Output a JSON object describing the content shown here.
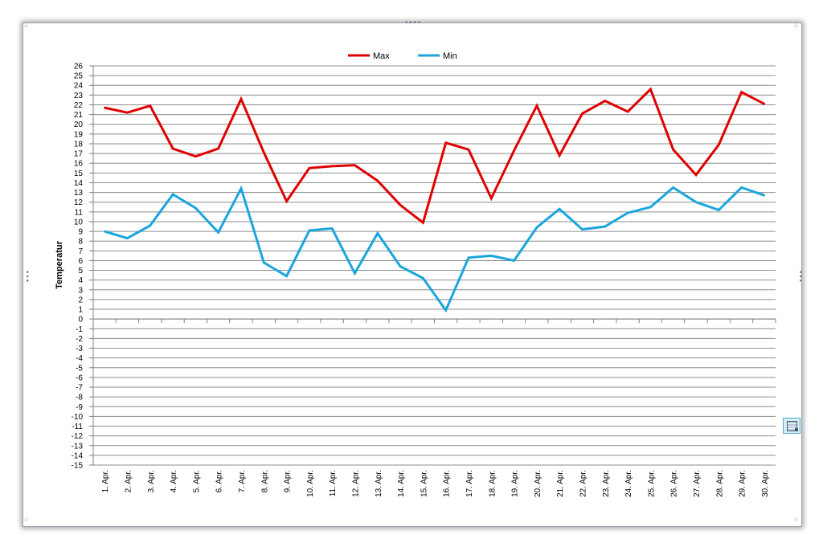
{
  "colors": {
    "max": "#e00000",
    "min": "#1aa6dd",
    "grid": "#8c8c8c",
    "frame_border": "#9aa3ad"
  },
  "icons": [
    "resize-handle-icon",
    "paste-options-icon"
  ],
  "chart_data": {
    "type": "line",
    "title": "",
    "xlabel": "",
    "ylabel": "Temperatur",
    "ylim": [
      -15,
      26
    ],
    "ytick_step": 1,
    "grid": "horizontal",
    "legend_position": "top-center",
    "categories": [
      "1. Apr.",
      "2. Apr.",
      "3. Apr.",
      "4. Apr.",
      "5. Apr.",
      "6. Apr.",
      "7. Apr.",
      "8. Apr.",
      "9. Apr.",
      "10. Apr.",
      "11. Apr.",
      "12. Apr.",
      "13. Apr.",
      "14. Apr.",
      "15. Apr.",
      "16. Apr.",
      "17. Apr.",
      "18. Apr.",
      "19. Apr.",
      "20. Apr.",
      "21. Apr.",
      "22. Apr.",
      "23. Apr.",
      "24. Apr.",
      "25. Apr.",
      "26. Apr.",
      "27. Apr.",
      "28. Apr.",
      "29. Apr.",
      "30. Apr."
    ],
    "series": [
      {
        "name": "Max",
        "color": "#e00000",
        "values": [
          21.7,
          21.2,
          21.9,
          17.5,
          16.7,
          17.5,
          22.6,
          17.1,
          12.1,
          15.5,
          15.7,
          15.8,
          14.2,
          11.7,
          9.9,
          18.1,
          17.4,
          12.4,
          17.3,
          21.9,
          16.8,
          21.1,
          22.4,
          21.3,
          23.6,
          17.4,
          14.8,
          17.9,
          23.3,
          22.1
        ]
      },
      {
        "name": "Min",
        "color": "#1aa6dd",
        "values": [
          9.0,
          8.3,
          9.6,
          12.8,
          11.4,
          8.9,
          13.4,
          5.8,
          4.4,
          9.1,
          9.3,
          4.7,
          8.8,
          5.4,
          4.2,
          0.9,
          6.3,
          6.5,
          6.0,
          9.4,
          11.3,
          9.2,
          9.5,
          10.9,
          11.5,
          13.5,
          12.0,
          11.2,
          13.5,
          12.7
        ]
      }
    ]
  }
}
